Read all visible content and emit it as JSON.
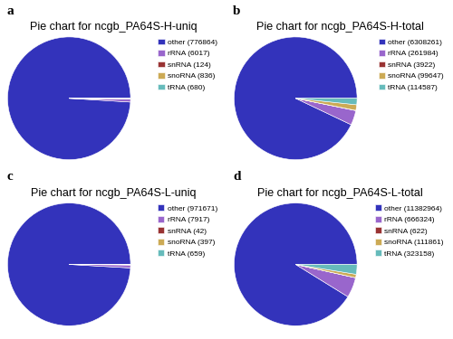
{
  "chart_data": [
    {
      "type": "pie",
      "title": "Pie chart for ncgb_PA64S-H-uniq",
      "annotations": [
        "a"
      ],
      "categories": [
        "other (776864)",
        "rRNA (6017)",
        "snRNA (124)",
        "snoRNA (836)",
        "tRNA (680)"
      ],
      "values": [
        776864,
        6017,
        124,
        836,
        680
      ],
      "colors": [
        "#3333bb",
        "#9966cc",
        "#993333",
        "#ccaa55",
        "#66bbbb"
      ],
      "legend": "upper right"
    },
    {
      "type": "pie",
      "title": "Pie chart for ncgb_PA64S-H-total",
      "annotations": [
        "b"
      ],
      "categories": [
        "other (6308261)",
        "rRNA (261984)",
        "snRNA (3922)",
        "snoRNA (99647)",
        "tRNA (114587)"
      ],
      "values": [
        6308261,
        261984,
        3922,
        99647,
        114587
      ],
      "colors": [
        "#3333bb",
        "#9966cc",
        "#993333",
        "#ccaa55",
        "#66bbbb"
      ],
      "legend": "upper right"
    },
    {
      "type": "pie",
      "title": "Pie chart for ncgb_PA64S-L-uniq",
      "annotations": [
        "c"
      ],
      "categories": [
        "other (971671)",
        "rRNA (7917)",
        "snRNA (42)",
        "snoRNA (397)",
        "tRNA (659)"
      ],
      "values": [
        971671,
        7917,
        42,
        397,
        659
      ],
      "colors": [
        "#3333bb",
        "#9966cc",
        "#993333",
        "#ccaa55",
        "#66bbbb"
      ],
      "legend": "upper right"
    },
    {
      "type": "pie",
      "title": "Pie chart for ncgb_PA64S-L-total",
      "annotations": [
        "d"
      ],
      "categories": [
        "other (11382964)",
        "rRNA (666324)",
        "snRNA (622)",
        "snoRNA (111861)",
        "tRNA (323158)"
      ],
      "values": [
        11382964,
        666324,
        622,
        111861,
        323158
      ],
      "colors": [
        "#3333bb",
        "#9966cc",
        "#993333",
        "#ccaa55",
        "#66bbbb"
      ],
      "legend": "upper right"
    }
  ]
}
